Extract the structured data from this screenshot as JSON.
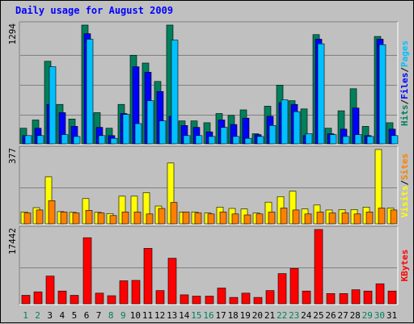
{
  "chart_data": {
    "type": "bar",
    "title": "Daily usage for August 2009",
    "days": [
      "1",
      "2",
      "3",
      "4",
      "5",
      "6",
      "7",
      "8",
      "9",
      "10",
      "11",
      "12",
      "13",
      "14",
      "15",
      "16",
      "17",
      "18",
      "19",
      "20",
      "21",
      "22",
      "23",
      "24",
      "25",
      "26",
      "27",
      "28",
      "29",
      "30",
      "31"
    ],
    "weekend_days": [
      "1",
      "2",
      "8",
      "9",
      "15",
      "16",
      "22",
      "23",
      "29",
      "30"
    ],
    "colors": {
      "hits": "#00805c",
      "files": "#0000ff",
      "pages": "#00c0ff",
      "visits": "#ffff00",
      "sites": "#ff8000",
      "kbytes": "#ff0000",
      "weekend_label": "#00805c",
      "weekday_label": "#000000"
    },
    "panels": [
      {
        "id": "hits-files-pages",
        "max_label": "1294",
        "ymax": 1294,
        "legend": [
          {
            "text": "Hits",
            "color": "#00805c"
          },
          {
            "text": "/",
            "color": "#000000"
          },
          {
            "text": "Files",
            "color": "#0000ff"
          },
          {
            "text": "/",
            "color": "#000000"
          },
          {
            "text": "Pages",
            "color": "#00c0ff"
          }
        ],
        "series": [
          {
            "name": "Hits",
            "color": "#00805c",
            "values": [
              170,
              260,
              900,
              430,
              270,
              1294,
              340,
              170,
              430,
              965,
              880,
              680,
              1294,
              250,
              250,
              230,
              330,
              310,
              370,
              110,
              410,
              640,
              470,
              380,
              1190,
              170,
              360,
              600,
              190,
              1170,
              230
            ]
          },
          {
            "name": "Files",
            "color": "#0000ff",
            "values": [
              90,
              170,
              430,
              340,
              190,
              1200,
              180,
              90,
              330,
              840,
              780,
              570,
              300,
              200,
              180,
              130,
              260,
              210,
              280,
              100,
              300,
              450,
              430,
              90,
              1140,
              110,
              160,
              390,
              90,
              1140,
              160
            ]
          },
          {
            "name": "Pages",
            "color": "#00c0ff",
            "values": [
              90,
              90,
              840,
              100,
              80,
              1140,
              90,
              60,
              320,
              220,
              470,
              250,
              1130,
              90,
              90,
              80,
              180,
              80,
              60,
              80,
              200,
              480,
              350,
              110,
              1090,
              100,
              80,
              100,
              80,
              1080,
              90
            ]
          }
        ]
      },
      {
        "id": "visits-sites",
        "max_label": "377",
        "ymax": 377,
        "legend": [
          {
            "text": "Visits",
            "color": "#ffff00"
          },
          {
            "text": "/",
            "color": "#000000"
          },
          {
            "text": "Sites",
            "color": "#ff8000"
          }
        ],
        "series": [
          {
            "name": "Visits",
            "color": "#ffff00",
            "values": [
              60,
              82,
              238,
              62,
              58,
              128,
              58,
              52,
              140,
              140,
              158,
              90,
              308,
              60,
              60,
              55,
              85,
              78,
              75,
              55,
              110,
              138,
              165,
              75,
              95,
              70,
              72,
              72,
              85,
              377,
              80
            ]
          },
          {
            "name": "Sites",
            "color": "#ff8000",
            "values": [
              55,
              70,
              117,
              60,
              55,
              68,
              55,
              42,
              60,
              60,
              50,
              78,
              108,
              60,
              55,
              50,
              60,
              50,
              45,
              50,
              60,
              80,
              70,
              50,
              60,
              55,
              55,
              50,
              60,
              80,
              70
            ]
          }
        ]
      },
      {
        "id": "kbytes",
        "max_label": "17442",
        "ymax": 17442,
        "legend": [
          {
            "text": "KBytes",
            "color": "#ff0000"
          }
        ],
        "series": [
          {
            "name": "KBytes",
            "color": "#ff0000",
            "values": [
              2000,
              2800,
              6500,
              3000,
              2000,
              15500,
              2500,
              1900,
              5400,
              5500,
              13000,
              3100,
              10700,
              2100,
              1800,
              1800,
              3700,
              1500,
              2500,
              1500,
              3100,
              7100,
              8300,
              3000,
              17442,
              2400,
              2400,
              3300,
              3000,
              4700,
              3000
            ]
          }
        ]
      }
    ]
  }
}
